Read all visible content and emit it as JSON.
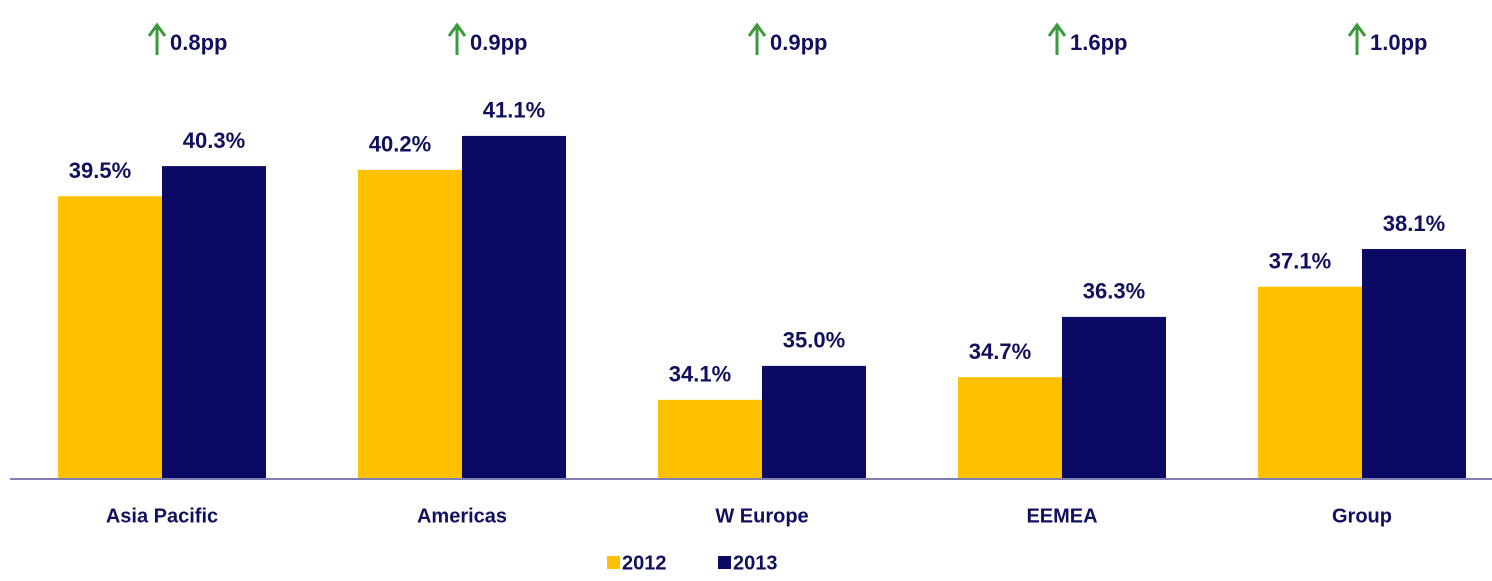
{
  "chart_data": {
    "type": "bar",
    "categories": [
      "Asia Pacific",
      "Americas",
      "W Europe",
      "EEMEA",
      "Group"
    ],
    "series": [
      {
        "name": "2012",
        "color": "#FFC000",
        "values": [
          39.5,
          40.2,
          34.1,
          34.7,
          37.1
        ],
        "value_labels": [
          "39.5%",
          "40.2%",
          "34.1%",
          "34.7%",
          "37.1%"
        ]
      },
      {
        "name": "2013",
        "color": "#0A0A64",
        "values": [
          40.3,
          41.1,
          35.0,
          36.3,
          38.1
        ],
        "value_labels": [
          "40.3%",
          "41.1%",
          "35.0%",
          "36.3%",
          "38.1%"
        ]
      }
    ],
    "annotations": [
      "0.8pp",
      "0.9pp",
      "0.9pp",
      "1.6pp",
      "1.0pp"
    ],
    "ylim": [
      32,
      44
    ]
  }
}
